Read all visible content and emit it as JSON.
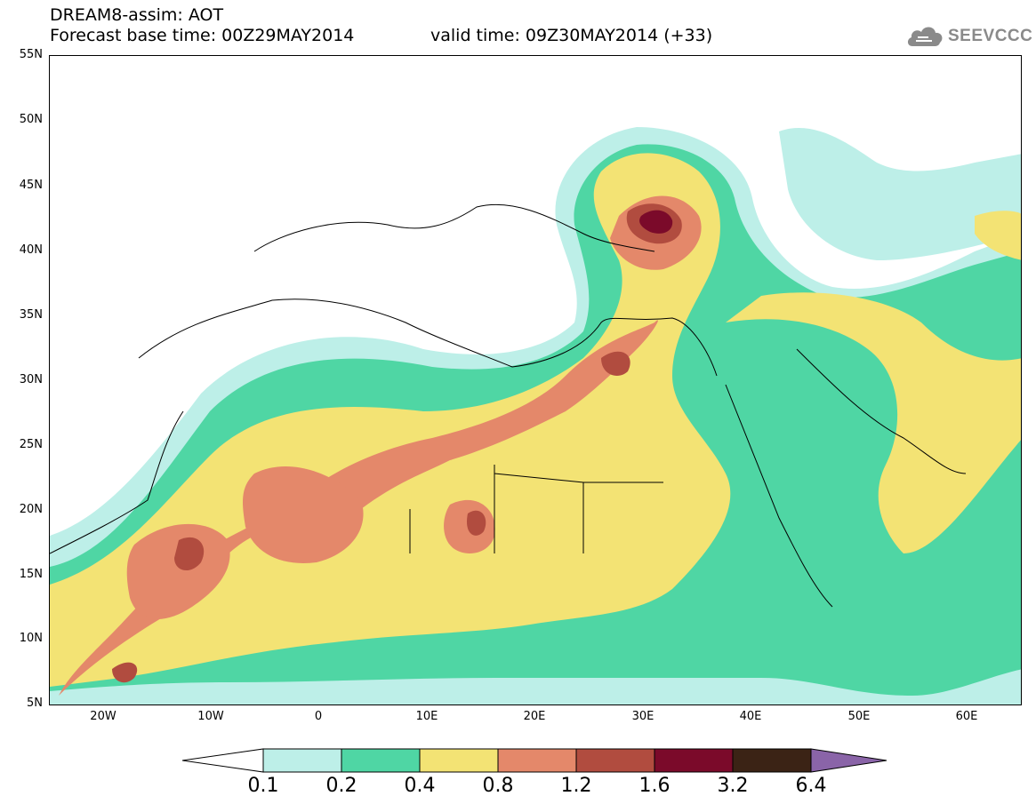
{
  "header": {
    "title_line1": "DREAM8-assim: AOT",
    "base_time": "Forecast base time: 00Z29MAY2014",
    "valid_time": "valid time: 09Z30MAY2014 (+33)"
  },
  "logo": {
    "text": "SEEVCCC",
    "icon": "cloud-icon",
    "color": "#8a8a8a"
  },
  "map": {
    "lon_range": [
      -25,
      65
    ],
    "lat_range": [
      5,
      55
    ],
    "lat_labels": [
      "55N",
      "50N",
      "45N",
      "40N",
      "35N",
      "30N",
      "25N",
      "20N",
      "15N",
      "10N",
      "5N"
    ],
    "lon_labels": [
      "20W",
      "10W",
      "0",
      "10E",
      "20E",
      "30E",
      "40E",
      "50E",
      "60E"
    ],
    "background": "#ffffff",
    "border_color": "#000000"
  },
  "colorbar": {
    "colors": [
      "#ffffff",
      "#bdefe8",
      "#4fd6a4",
      "#f3e374",
      "#e4886a",
      "#b14c3f",
      "#7b0a2a",
      "#3b2315",
      "#8a64a8"
    ],
    "labels": [
      "0.1",
      "0.2",
      "0.4",
      "0.8",
      "1.2",
      "1.6",
      "3.2",
      "6.4"
    ]
  }
}
